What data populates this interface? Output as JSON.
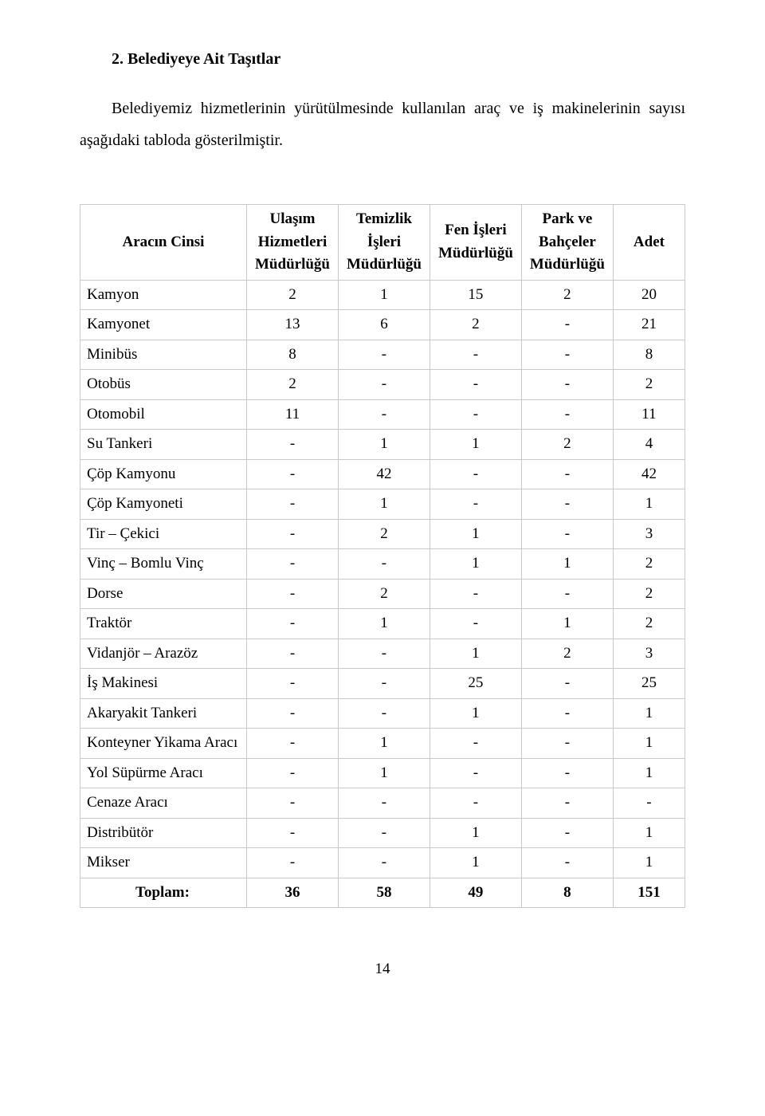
{
  "heading": "2.  Belediyeye Ait Taşıtlar",
  "paragraph": "Belediyemiz hizmetlerinin yürütülmesinde kullanılan araç ve iş makinelerinin sayısı aşağıdaki tabloda gösterilmiştir.",
  "table": {
    "columns": [
      "Aracın Cinsi",
      "Ulaşım Hizmetleri Müdürlüğü",
      "Temizlik İşleri Müdürlüğü",
      "Fen İşleri Müdürlüğü",
      "Park ve Bahçeler Müdürlüğü",
      "Adet"
    ],
    "colWidths": [
      "28%",
      "15%",
      "15%",
      "15%",
      "15%",
      "12%"
    ],
    "rows": [
      [
        "Kamyon",
        "2",
        "1",
        "15",
        "2",
        "20"
      ],
      [
        "Kamyonet",
        "13",
        "6",
        "2",
        "-",
        "21"
      ],
      [
        "Minibüs",
        "8",
        "-",
        "-",
        "-",
        "8"
      ],
      [
        "Otobüs",
        "2",
        "-",
        "-",
        "-",
        "2"
      ],
      [
        "Otomobil",
        "11",
        "-",
        "-",
        "-",
        "11"
      ],
      [
        "Su Tankeri",
        "-",
        "1",
        "1",
        "2",
        "4"
      ],
      [
        "Çöp Kamyonu",
        "-",
        "42",
        "-",
        "-",
        "42"
      ],
      [
        "Çöp Kamyoneti",
        "-",
        "1",
        "-",
        "-",
        "1"
      ],
      [
        "Tir – Çekici",
        "-",
        "2",
        "1",
        "-",
        "3"
      ],
      [
        "Vinç – Bomlu Vinç",
        "-",
        "-",
        "1",
        "1",
        "2"
      ],
      [
        "Dorse",
        "-",
        "2",
        "-",
        "-",
        "2"
      ],
      [
        "Traktör",
        "-",
        "1",
        "-",
        "1",
        "2"
      ],
      [
        "Vidanjör – Arazöz",
        "-",
        "-",
        "1",
        "2",
        "3"
      ],
      [
        "İş Makinesi",
        "-",
        "-",
        "25",
        "-",
        "25"
      ],
      [
        "Akaryakit Tankeri",
        "-",
        "-",
        "1",
        "-",
        "1"
      ],
      [
        "Konteyner Yikama Aracı",
        "-",
        "1",
        "-",
        "-",
        "1"
      ],
      [
        "Yol Süpürme Aracı",
        "-",
        "1",
        "-",
        "-",
        "1"
      ],
      [
        "Cenaze Aracı",
        "-",
        "-",
        "-",
        "-",
        "-"
      ],
      [
        "Distribütör",
        "-",
        "-",
        "1",
        "-",
        "1"
      ],
      [
        "Mikser",
        "-",
        "-",
        "1",
        "-",
        "1"
      ]
    ],
    "total": [
      "Toplam:",
      "36",
      "58",
      "49",
      "8",
      "151"
    ]
  },
  "pageNumber": "14",
  "style": {
    "fontFamily": "Times New Roman",
    "bodyFontSize": 20,
    "tableFontSize": 19,
    "textColor": "#000000",
    "background": "#ffffff",
    "borderColor": "#c9c9c9"
  }
}
